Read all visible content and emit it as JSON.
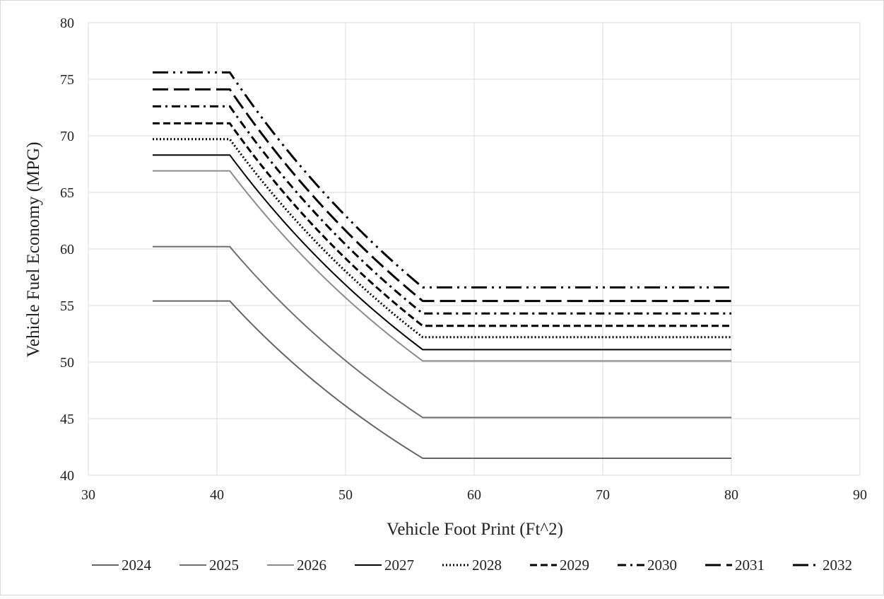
{
  "chart_data": {
    "type": "line",
    "title": "",
    "xlabel": "Vehicle Foot Print (Ft^2)",
    "ylabel": "Vehicle Fuel Economy (MPG)",
    "xlim": [
      30,
      90
    ],
    "ylim": [
      40,
      80
    ],
    "x_ticks": [
      30,
      40,
      50,
      60,
      70,
      80,
      90
    ],
    "y_ticks": [
      40,
      45,
      50,
      55,
      60,
      65,
      70,
      75,
      80
    ],
    "x_tick_labels": [
      "30",
      "40",
      "50",
      "60",
      "70",
      "80",
      "90"
    ],
    "y_tick_labels": [
      "40",
      "45",
      "50",
      "55",
      "60",
      "65",
      "70",
      "75",
      "80"
    ],
    "grid": true,
    "legend_position": "bottom",
    "x_points": [
      35,
      41,
      56,
      80
    ],
    "series": [
      {
        "name": "2024",
        "plateau_high": 55.4,
        "plateau_low": 41.5,
        "color": "#666666",
        "dash": "solid"
      },
      {
        "name": "2025",
        "plateau_high": 60.2,
        "plateau_low": 45.1,
        "color": "#6f6f6f",
        "dash": "solid"
      },
      {
        "name": "2026",
        "plateau_high": 66.9,
        "plateau_low": 50.1,
        "color": "#8c8c8c",
        "dash": "solid"
      },
      {
        "name": "2027",
        "plateau_high": 68.3,
        "plateau_low": 51.1,
        "color": "#000000",
        "dash": "solid"
      },
      {
        "name": "2028",
        "plateau_high": 69.7,
        "plateau_low": 52.2,
        "color": "#000000",
        "dash": "dot"
      },
      {
        "name": "2029",
        "plateau_high": 71.1,
        "plateau_low": 53.2,
        "color": "#000000",
        "dash": "dash"
      },
      {
        "name": "2030",
        "plateau_high": 72.6,
        "plateau_low": 54.3,
        "color": "#000000",
        "dash": "dashdot"
      },
      {
        "name": "2031",
        "plateau_high": 74.1,
        "plateau_low": 55.4,
        "color": "#000000",
        "dash": "longdash"
      },
      {
        "name": "2032",
        "plateau_high": 75.6,
        "plateau_low": 56.6,
        "color": "#000000",
        "dash": "longdashdotdot"
      }
    ]
  }
}
